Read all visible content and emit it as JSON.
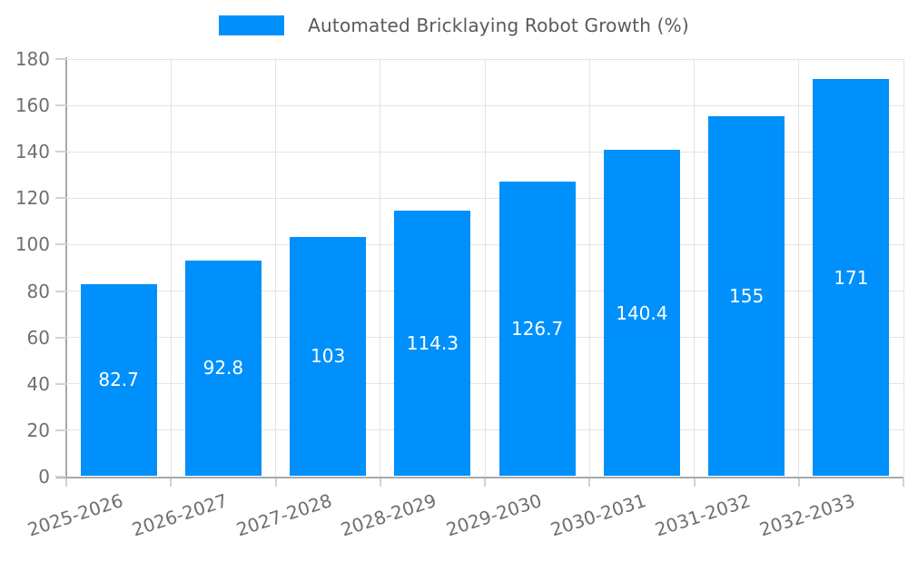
{
  "legend": {
    "label": "Automated Bricklaying Robot Growth (%)",
    "swatch_color": "#0090FB"
  },
  "chart_data": {
    "type": "bar",
    "title": "Automated Bricklaying Robot Growth (%)",
    "series_name": "Automated Bricklaying Robot Growth (%)",
    "categories": [
      "2025-2026",
      "2026-2027",
      "2027-2028",
      "2028-2029",
      "2029-2030",
      "2030-2031",
      "2031-2032",
      "2032-2033"
    ],
    "values": [
      82.7,
      92.8,
      103,
      114.3,
      126.7,
      140.4,
      155,
      171
    ],
    "value_labels": [
      "82.7",
      "92.8",
      "103",
      "114.3",
      "126.7",
      "140.4",
      "155",
      "171"
    ],
    "xlabel": "",
    "ylabel": "",
    "ylim": [
      0,
      180
    ],
    "ytick_step": 20,
    "yticks": [
      0,
      20,
      40,
      60,
      80,
      100,
      120,
      140,
      160,
      180
    ],
    "grid": true,
    "legend_position": "top",
    "colors": {
      "bar": "#0090FB",
      "gridline": "#e4e4e4",
      "axis": "#a9a9a9",
      "tick_label": "#6f6f6f",
      "legend_text": "#58595b",
      "bar_label": "#ffffff"
    }
  }
}
